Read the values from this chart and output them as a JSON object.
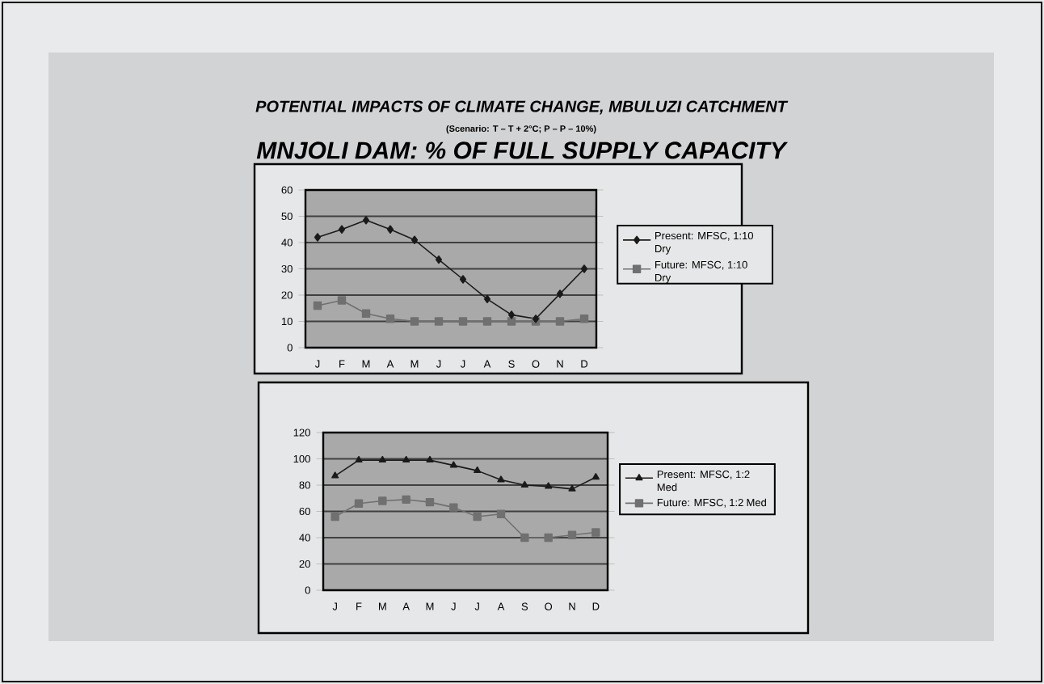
{
  "chart_data": [
    {
      "type": "line",
      "title": "POTENTIAL IMPACTS OF CLIMATE CHANGE, MBULUZI CATCHMENT",
      "subtitle": "(Scenario: T – T + 2°C; P – P – 10%)",
      "annotations": [
        "MNJOLI DAM:  % OF FULL SUPPLY CAPACITY"
      ],
      "categories": [
        "J",
        "F",
        "M",
        "A",
        "M",
        "J",
        "J",
        "A",
        "S",
        "O",
        "N",
        "D"
      ],
      "series": [
        {
          "name": "Present: MFSC, 1:10 Dry",
          "color": "#1a1a1a",
          "marker": "diamond",
          "values": [
            42,
            45,
            48.5,
            45,
            41,
            33.5,
            26,
            18.5,
            12.5,
            11,
            20.5,
            30
          ]
        },
        {
          "name": "Future: MFSC, 1:10 Dry",
          "color": "#707070",
          "marker": "square",
          "values": [
            16,
            18,
            13,
            11,
            10,
            10,
            10,
            10,
            10,
            10,
            10,
            11
          ]
        }
      ],
      "ylim": [
        0,
        60
      ],
      "yticks": [
        0,
        10,
        20,
        30,
        40,
        50,
        60
      ],
      "grid": "y",
      "legend": "right"
    },
    {
      "type": "line",
      "categories": [
        "J",
        "F",
        "M",
        "A",
        "M",
        "J",
        "J",
        "A",
        "S",
        "O",
        "N",
        "D"
      ],
      "series": [
        {
          "name": "Present: MFSC, 1:2 Med",
          "color": "#1a1a1a",
          "marker": "triangle",
          "values": [
            87,
            99,
            99,
            99,
            99,
            95,
            91,
            84,
            80,
            79,
            77,
            86
          ]
        },
        {
          "name": "Future: MFSC, 1:2 Med",
          "color": "#707070",
          "marker": "square",
          "values": [
            56,
            66,
            68,
            69,
            67,
            63,
            56,
            58,
            40,
            40,
            42,
            44
          ]
        }
      ],
      "ylim": [
        0,
        120
      ],
      "yticks": [
        0,
        20,
        40,
        60,
        80,
        100,
        120
      ],
      "grid": "y",
      "legend": "right"
    }
  ]
}
